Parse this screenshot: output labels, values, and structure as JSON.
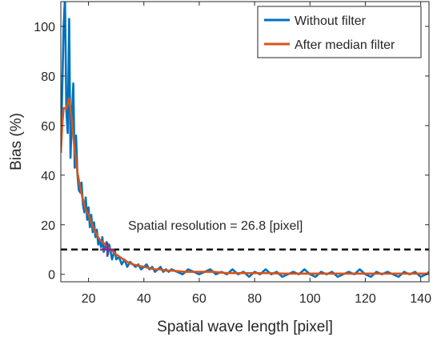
{
  "chart_data": {
    "type": "line",
    "xlabel": "Spatial wave length [pixel]",
    "ylabel": "Bias (%)",
    "xlim": [
      10,
      143
    ],
    "ylim": [
      -3,
      110
    ],
    "x_ticks": [
      20,
      40,
      60,
      80,
      100,
      120,
      140
    ],
    "y_ticks": [
      0,
      20,
      40,
      60,
      80,
      100
    ],
    "grid": false,
    "legend_position": "top-right",
    "threshold": {
      "y": 10,
      "style": "dashed",
      "color": "#000000"
    },
    "annotation": {
      "text": "Spatial resolution = 26.8 [pixel]",
      "x": 26.8,
      "y": 10
    },
    "marker": {
      "x": 26.8,
      "y": 10,
      "color": "#7E2F8E",
      "shape": "plus"
    },
    "series": [
      {
        "name": "Without filter",
        "color": "#0072BD",
        "x": [
          10,
          11,
          11.5,
          12,
          12.5,
          13,
          13.5,
          14,
          14.5,
          15,
          15.5,
          16,
          16.5,
          17,
          17.5,
          18,
          18.5,
          19,
          19.5,
          20,
          20.5,
          21,
          21.5,
          22,
          22.5,
          23,
          23.5,
          24,
          24.5,
          25,
          25.5,
          26,
          26.5,
          27,
          27.5,
          28,
          28.5,
          29,
          29.5,
          30,
          31,
          32,
          33,
          34,
          35,
          36,
          37,
          38,
          39,
          40,
          41,
          42,
          43,
          44,
          45,
          46,
          47,
          48,
          49,
          50,
          52,
          54,
          56,
          58,
          60,
          62,
          64,
          66,
          68,
          70,
          72,
          74,
          76,
          78,
          80,
          82,
          84,
          86,
          88,
          90,
          92,
          94,
          96,
          98,
          100,
          102,
          104,
          106,
          108,
          110,
          112,
          114,
          116,
          118,
          120,
          122,
          124,
          126,
          128,
          130,
          132,
          134,
          136,
          138,
          140,
          142,
          143
        ],
        "y": [
          49,
          100,
          112,
          66,
          57,
          103,
          47,
          64,
          77,
          43,
          56,
          40,
          34,
          33,
          37,
          28,
          25,
          31,
          22,
          27,
          19,
          24,
          17,
          21,
          15,
          18,
          12,
          14,
          11,
          15,
          9,
          11,
          13,
          8,
          12,
          9,
          6,
          8,
          10,
          6,
          7,
          4,
          6,
          3,
          5,
          4,
          3,
          4,
          2,
          3,
          4,
          2,
          3,
          1,
          2,
          3,
          1,
          2,
          1,
          2,
          1,
          0,
          2,
          1,
          0,
          1,
          2,
          0,
          1,
          0,
          2,
          0,
          1,
          -1,
          1,
          0,
          2,
          0,
          1,
          -1,
          0,
          1,
          0,
          2,
          0,
          -1,
          1,
          0,
          1,
          -1,
          0,
          1,
          0,
          2,
          0,
          -1,
          1,
          0,
          1,
          0,
          -1,
          1,
          0,
          1,
          -1,
          0,
          1
        ]
      },
      {
        "name": "After median filter",
        "color": "#D95319",
        "x": [
          10,
          10.5,
          11,
          12,
          13,
          14,
          15,
          16,
          17,
          18,
          19,
          20,
          21,
          22,
          23,
          24,
          25,
          26,
          27,
          28,
          29,
          30,
          32,
          34,
          36,
          38,
          40,
          42,
          44,
          46,
          48,
          50,
          55,
          60,
          65,
          70,
          75,
          80,
          85,
          90,
          95,
          100,
          105,
          110,
          115,
          120,
          125,
          130,
          135,
          140,
          143
        ],
        "y": [
          49,
          60,
          67,
          67,
          71,
          62,
          50,
          41,
          35,
          30,
          26,
          24,
          21,
          18,
          16,
          14,
          13,
          12,
          11,
          10,
          9,
          8,
          6.5,
          5,
          4,
          3.5,
          3,
          2.5,
          2,
          2,
          1.5,
          1.5,
          1,
          1,
          1,
          0.5,
          0.5,
          0.5,
          0.5,
          0.3,
          0.3,
          0.3,
          0.3,
          0.3,
          0.3,
          0.3,
          0.3,
          0.3,
          0.3,
          0.3,
          0.3
        ]
      }
    ]
  }
}
